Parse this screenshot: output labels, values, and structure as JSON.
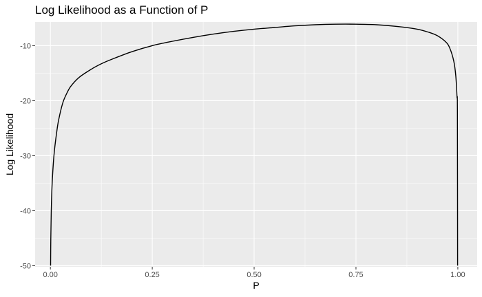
{
  "chart_data": {
    "type": "line",
    "title": "Log Likelihood as a Function of P",
    "xlabel": "P",
    "ylabel": "Log Likelihood",
    "xlim": [
      -0.0375,
      1.0475
    ],
    "ylim": [
      -50.2,
      -5.7
    ],
    "x_ticks": [
      {
        "value": 0.0,
        "label": "0.00"
      },
      {
        "value": 0.25,
        "label": "0.25"
      },
      {
        "value": 0.5,
        "label": "0.50"
      },
      {
        "value": 0.75,
        "label": "0.75"
      },
      {
        "value": 1.0,
        "label": "1.00"
      }
    ],
    "y_ticks": [
      {
        "value": -10,
        "label": "-10"
      },
      {
        "value": -20,
        "label": "-20"
      },
      {
        "value": -30,
        "label": "-30"
      },
      {
        "value": -40,
        "label": "-40"
      },
      {
        "value": -50,
        "label": "-50"
      }
    ],
    "x_minor": [
      0.125,
      0.375,
      0.625,
      0.875
    ],
    "y_minor": [
      -15,
      -25,
      -35,
      -45
    ],
    "grid": true,
    "background": "#ebebeb",
    "series": [
      {
        "color": "#000000",
        "x": [
          0.0005,
          0.001,
          0.002,
          0.004,
          0.007,
          0.01,
          0.015,
          0.02,
          0.03,
          0.04,
          0.05,
          0.07,
          0.1,
          0.125,
          0.15,
          0.2,
          0.25,
          0.3,
          0.35,
          0.4,
          0.45,
          0.5,
          0.55,
          0.6,
          0.65,
          0.7,
          0.75,
          0.8,
          0.85,
          0.9,
          0.93,
          0.95,
          0.97,
          0.98,
          0.99,
          0.995,
          0.998,
          0.999,
          0.9995
        ],
        "y": [
          -50.0,
          -45.2,
          -40.4,
          -35.6,
          -31.6,
          -29.0,
          -26.0,
          -23.6,
          -20.5,
          -18.7,
          -17.4,
          -15.8,
          -14.3,
          -13.3,
          -12.5,
          -11.1,
          -10.0,
          -9.2,
          -8.5,
          -7.9,
          -7.4,
          -7.0,
          -6.7,
          -6.4,
          -6.2,
          -6.1,
          -6.1,
          -6.2,
          -6.5,
          -7.0,
          -7.6,
          -8.2,
          -9.3,
          -10.4,
          -12.8,
          -15.5,
          -19.3,
          -22.2,
          -50.0
        ]
      }
    ]
  }
}
